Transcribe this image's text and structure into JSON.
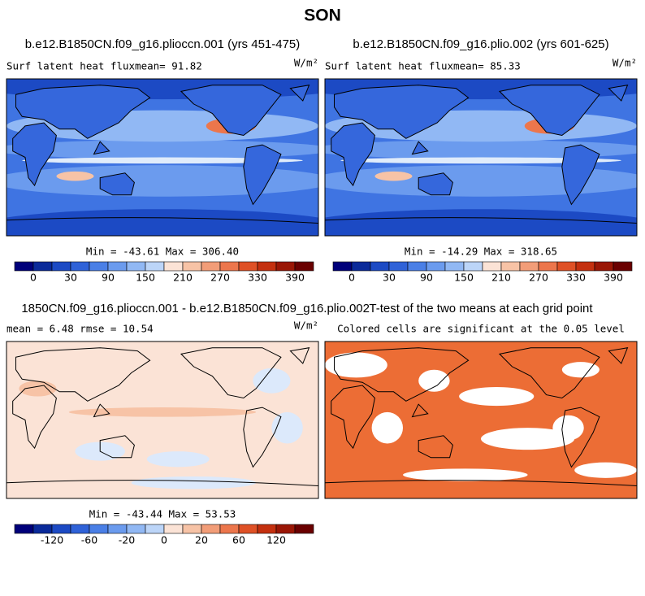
{
  "title": "SON",
  "panels": [
    {
      "title": "b.e12.B1850CN.f09_g16.plioccn.001 (yrs 451-475)",
      "subtitle": "Surf latent heat fluxmean=  91.82",
      "units": "W/m²",
      "stats": "Min = -43.61 Max = 306.40",
      "colorbar_labels": [
        0,
        30,
        90,
        150,
        210,
        270,
        330,
        390
      ]
    },
    {
      "title": "b.e12.B1850CN.f09_g16.plio.002 (yrs 601-625)",
      "subtitle": "Surf latent heat fluxmean=  85.33",
      "units": "W/m²",
      "stats": "Min = -14.29 Max = 318.65",
      "colorbar_labels": [
        0,
        30,
        90,
        150,
        210,
        270,
        330,
        390
      ]
    },
    {
      "title": "1850CN.f09_g16.plioccn.001 - b.e12.B1850CN.f09_g16.plio.002",
      "subtitle": "mean =   6.48    rmse =  10.54",
      "units": "W/m²",
      "stats": "Min = -43.44 Max = 53.53",
      "colorbar_labels": [
        -120,
        -60,
        -20,
        0,
        20,
        60,
        120
      ]
    },
    {
      "title": "T-test of the two means at each grid point",
      "subtitle": "Colored cells are significant at the 0.05 level"
    }
  ]
}
